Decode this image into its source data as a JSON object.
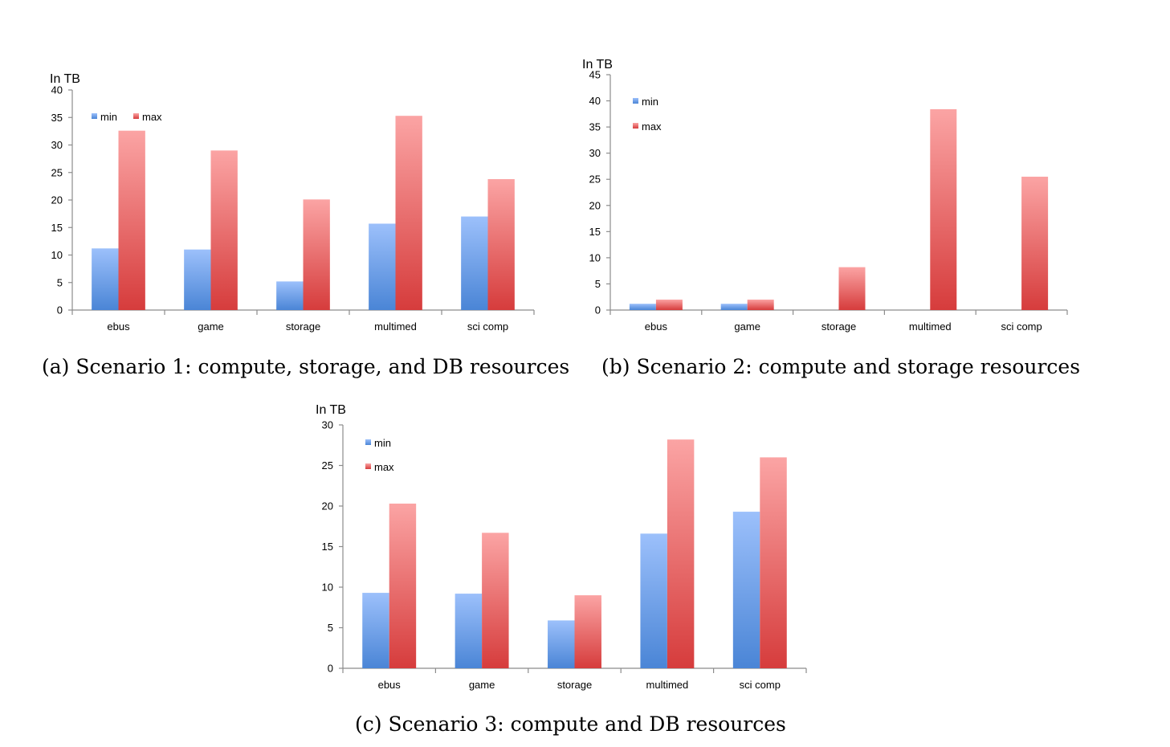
{
  "colors": {
    "min": "#4a85d6",
    "min_light": "#9cc0fb",
    "max": "#d63c3c",
    "max_light": "#fba4a4",
    "axis": "#8c8c8c"
  },
  "chart_data": [
    {
      "type": "bar",
      "id": "a",
      "caption": "(a) Scenario 1: compute, storage, and DB resources",
      "ylabel": "In TB",
      "categories": [
        "ebus",
        "game",
        "storage",
        "multimed",
        "sci comp"
      ],
      "ylim": [
        0,
        40
      ],
      "yticks": [
        0,
        5,
        10,
        15,
        20,
        25,
        30,
        35,
        40
      ],
      "legend_layout": "horizontal",
      "series": [
        {
          "name": "min",
          "values": [
            11.2,
            11.0,
            5.2,
            15.7,
            17.0
          ]
        },
        {
          "name": "max",
          "values": [
            32.6,
            29.0,
            20.1,
            35.3,
            23.8
          ]
        }
      ]
    },
    {
      "type": "bar",
      "id": "b",
      "caption": "(b) Scenario 2: compute and storage resources",
      "ylabel": "In TB",
      "categories": [
        "ebus",
        "game",
        "storage",
        "multimed",
        "sci comp"
      ],
      "ylim": [
        0,
        45
      ],
      "yticks": [
        0,
        5,
        10,
        15,
        20,
        25,
        30,
        35,
        40,
        45
      ],
      "legend_layout": "vertical",
      "series": [
        {
          "name": "min",
          "values": [
            1.2,
            1.2,
            0,
            0,
            0
          ]
        },
        {
          "name": "max",
          "values": [
            2.0,
            2.0,
            8.2,
            38.4,
            25.5
          ]
        }
      ]
    },
    {
      "type": "bar",
      "id": "c",
      "caption": "(c) Scenario 3: compute and DB resources",
      "ylabel": "In TB",
      "categories": [
        "ebus",
        "game",
        "storage",
        "multimed",
        "sci comp"
      ],
      "ylim": [
        0,
        30
      ],
      "yticks": [
        0,
        5,
        10,
        15,
        20,
        25,
        30
      ],
      "legend_layout": "vertical",
      "series": [
        {
          "name": "min",
          "values": [
            9.3,
            9.2,
            5.9,
            16.6,
            19.3
          ]
        },
        {
          "name": "max",
          "values": [
            20.3,
            16.7,
            9.0,
            28.2,
            26.0
          ]
        }
      ]
    }
  ]
}
